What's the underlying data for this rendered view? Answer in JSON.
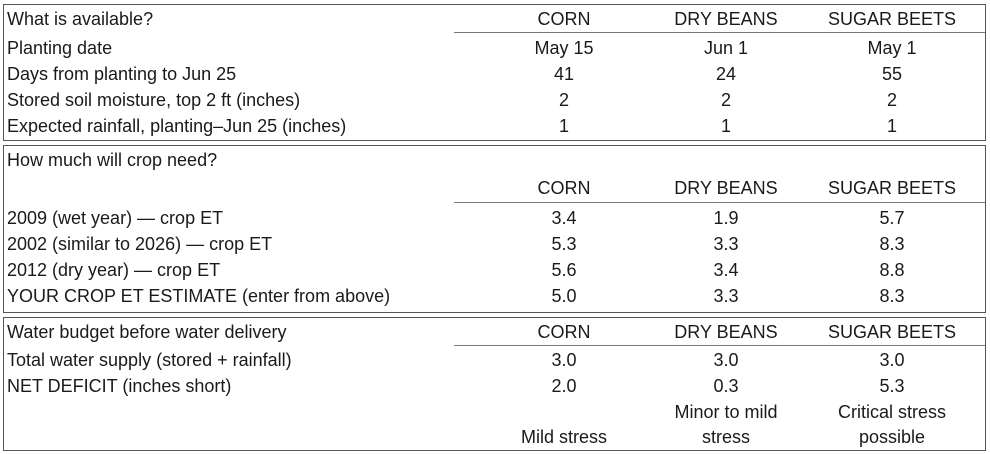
{
  "section1": {
    "title": "What is available?",
    "columns": [
      "CORN",
      "DRY BEANS",
      "SUGAR BEETS"
    ],
    "rows": [
      {
        "label": "Planting date",
        "values": [
          "May 15",
          "Jun 1",
          "May 1"
        ]
      },
      {
        "label": "Days from planting to Jun 25",
        "values": [
          "41",
          "24",
          "55"
        ]
      },
      {
        "label": "Stored soil moisture, top 2 ft (inches)",
        "values": [
          "2",
          "2",
          "2"
        ]
      },
      {
        "label": "Expected rainfall, planting–Jun 25 (inches)",
        "values": [
          "1",
          "1",
          "1"
        ]
      }
    ]
  },
  "section2": {
    "title": "How much will crop need?",
    "columns": [
      "CORN",
      "DRY BEANS",
      "SUGAR BEETS"
    ],
    "rows": [
      {
        "label": "2009 (wet year) — crop ET",
        "values": [
          "3.4",
          "1.9",
          "5.7"
        ]
      },
      {
        "label": "2002 (similar to 2026) — crop ET",
        "values": [
          "5.3",
          "3.3",
          "8.3"
        ]
      },
      {
        "label": "2012 (dry year) — crop ET",
        "values": [
          "5.6",
          "3.4",
          "8.8"
        ]
      },
      {
        "label": "YOUR CROP ET ESTIMATE (enter from above)",
        "values": [
          "5.0",
          "3.3",
          "8.3"
        ]
      }
    ]
  },
  "section3": {
    "title": "Water budget before water delivery",
    "columns": [
      "CORN",
      "DRY BEANS",
      "SUGAR BEETS"
    ],
    "rows": [
      {
        "label": "Total water supply (stored + rainfall)",
        "values": [
          "3.0",
          "3.0",
          "3.0"
        ]
      },
      {
        "label": "NET DEFICIT (inches short)",
        "values": [
          "2.0",
          "0.3",
          "5.3"
        ]
      }
    ],
    "stress": [
      {
        "line1": "",
        "line2": "Mild stress"
      },
      {
        "line1": "Minor to mild",
        "line2": "stress"
      },
      {
        "line1": "Critical stress",
        "line2": "possible"
      }
    ]
  }
}
